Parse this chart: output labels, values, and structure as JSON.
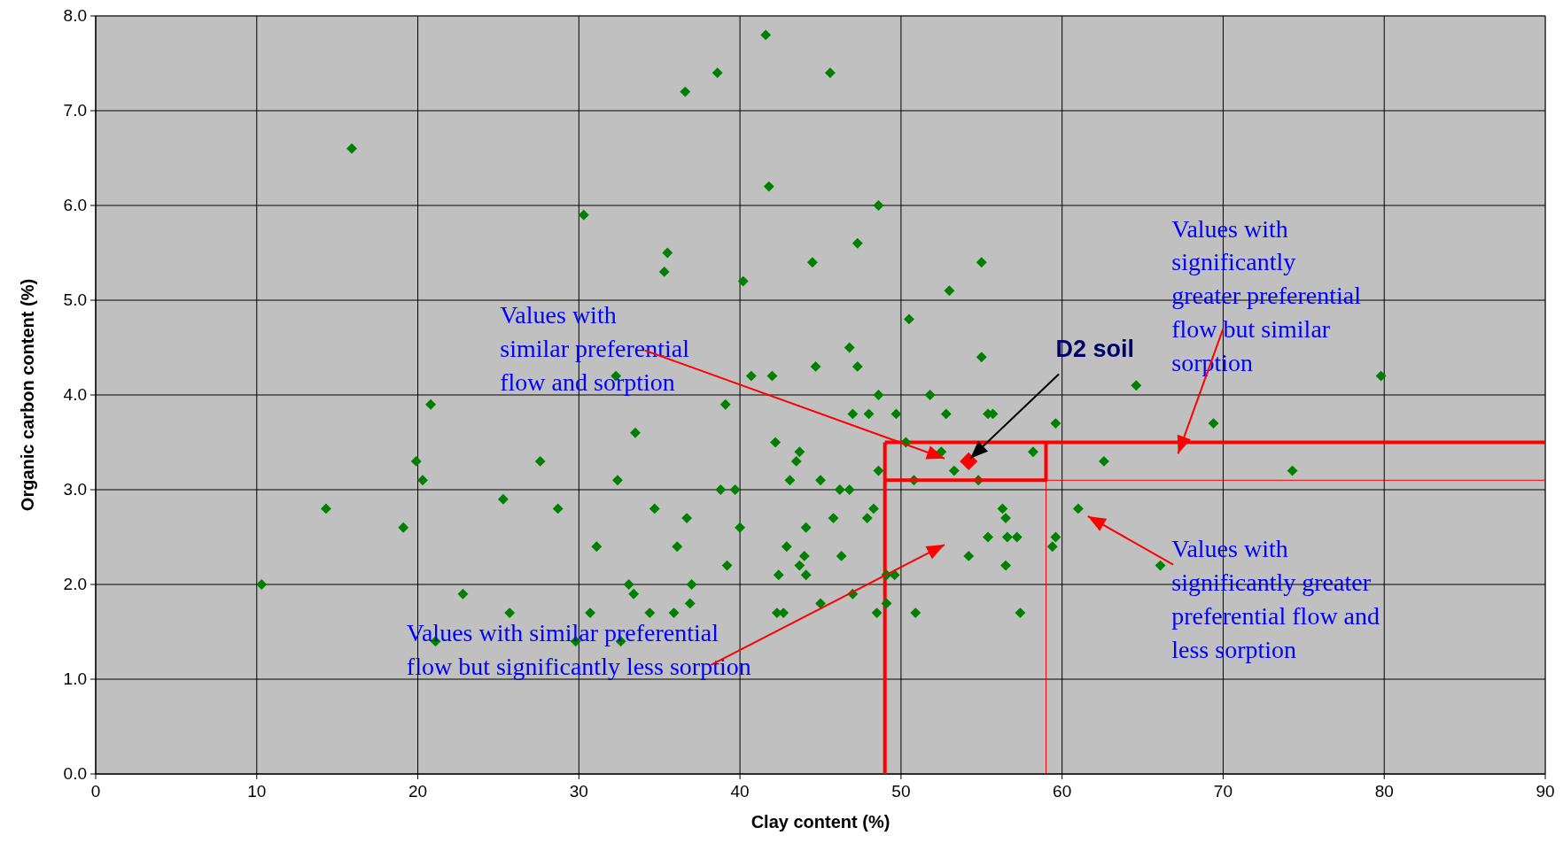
{
  "chart_data": {
    "type": "scatter",
    "xlabel": "Clay content (%)",
    "ylabel": "Organic carbon content (%)",
    "xlim": [
      0,
      90
    ],
    "xticks": [
      0,
      10,
      20,
      30,
      40,
      50,
      60,
      70,
      80,
      90
    ],
    "ylim": [
      0,
      8
    ],
    "yticks": [
      {
        "value": 0,
        "label": "0.0"
      },
      {
        "value": 1,
        "label": "1.0"
      },
      {
        "value": 2,
        "label": "2.0"
      },
      {
        "value": 3,
        "label": "3.0"
      },
      {
        "value": 4,
        "label": "4.0"
      },
      {
        "value": 5,
        "label": "5.0"
      },
      {
        "value": 6,
        "label": "6.0"
      },
      {
        "value": 7,
        "label": "7.0"
      },
      {
        "value": 8,
        "label": "8.0"
      }
    ],
    "grid": true,
    "marker": "diamond",
    "series": [
      {
        "color": "#008000",
        "x": [
          10.3,
          15.9,
          14.3,
          19.1,
          19.9,
          20.3,
          20.8,
          21.1,
          22.8,
          25.3,
          25.7,
          27.6,
          28.7,
          29.8,
          30.3,
          30.7,
          31.1,
          32.3,
          32.4,
          32.6,
          33.1,
          33.4,
          33.5,
          35.3,
          35.5,
          34.7,
          34.4,
          36.6,
          36.1,
          36.7,
          35.9,
          36.9,
          37.0,
          38.6,
          38.8,
          39.1,
          39.2,
          39.7,
          40.0,
          40.2,
          40.7,
          41.6,
          41.8,
          42.0,
          42.2,
          42.4,
          42.3,
          42.7,
          42.9,
          43.1,
          43.5,
          43.7,
          43.7,
          44.0,
          44.1,
          44.1,
          44.5,
          44.7,
          45.0,
          45.0,
          45.6,
          45.8,
          46.2,
          46.3,
          46.8,
          46.8,
          47.0,
          47.0,
          47.3,
          47.3,
          47.9,
          48.0,
          48.3,
          48.5,
          48.6,
          48.6,
          48.6,
          49.1,
          49.1,
          49.6,
          49.7,
          50.3,
          50.5,
          50.8,
          50.9,
          51.8,
          52.5,
          52.8,
          53.0,
          53.3,
          54.2,
          54.8,
          55.0,
          55.0,
          55.4,
          55.4,
          55.7,
          56.3,
          56.5,
          56.5,
          56.6,
          57.2,
          57.4,
          58.2,
          59.4,
          59.6,
          59.6,
          61.0,
          62.6,
          64.6,
          66.1,
          69.4,
          74.3,
          79.8
        ],
        "values": [
          2.0,
          6.6,
          2.8,
          2.6,
          3.3,
          3.1,
          3.9,
          1.4,
          1.9,
          2.9,
          1.7,
          3.3,
          2.8,
          1.4,
          5.9,
          1.7,
          2.4,
          4.2,
          3.1,
          1.4,
          2.0,
          1.9,
          3.6,
          5.3,
          5.5,
          2.8,
          1.7,
          7.2,
          2.4,
          2.7,
          1.7,
          1.8,
          2.0,
          7.4,
          3.0,
          3.9,
          2.2,
          3.0,
          2.6,
          5.2,
          4.2,
          7.8,
          6.2,
          4.2,
          3.5,
          2.1,
          1.7,
          1.7,
          2.4,
          3.1,
          3.3,
          3.4,
          2.2,
          2.3,
          2.6,
          2.1,
          5.4,
          4.3,
          1.8,
          3.1,
          7.4,
          2.7,
          3.0,
          2.3,
          4.5,
          3.0,
          3.8,
          1.9,
          5.6,
          4.3,
          2.7,
          3.8,
          2.8,
          1.7,
          3.2,
          4.0,
          6.0,
          2.1,
          1.8,
          2.1,
          3.8,
          3.5,
          4.8,
          3.1,
          1.7,
          4.0,
          3.4,
          3.8,
          5.1,
          3.2,
          2.3,
          3.1,
          4.4,
          5.4,
          3.8,
          2.5,
          3.8,
          2.8,
          2.7,
          2.2,
          2.5,
          2.5,
          1.7,
          3.4,
          2.4,
          2.5,
          3.7,
          2.8,
          3.3,
          4.1,
          2.2,
          3.7,
          3.2,
          4.2
        ]
      },
      {
        "color": "#ff0000",
        "x": [
          54.2
        ],
        "values": [
          3.3
        ]
      },
      {
        "type": "line",
        "marker": "none",
        "color": "#ff0000",
        "x": [
          49,
          59,
          59
        ],
        "values": [
          3.1,
          3.1,
          3.5
        ]
      }
    ],
    "ref_lines": [
      {
        "axis": "x",
        "value": 49,
        "color": "#ff0000"
      },
      {
        "axis": "y",
        "value": 3.5,
        "color": "#ff0000"
      },
      {
        "axis": "x",
        "value": 59,
        "color": "#ff0000"
      },
      {
        "axis": "y",
        "value": 3.1,
        "color": "#ff0000"
      }
    ],
    "annotations": [
      {
        "text": "Values with\nsimilar preferential\nflow and sorption",
        "x": 52.7,
        "y": 3.33
      },
      "Values with similar preferential\nflow but significantly less sorption",
      "Values with\nsignificantly\ngreater preferential\nflow but similar\nsorption",
      "Values with\nsignificantly greater\npreferential flow and\nless sorption",
      {
        "text": "D2 soil",
        "x": 54.3,
        "y": 3.33
      }
    ]
  }
}
